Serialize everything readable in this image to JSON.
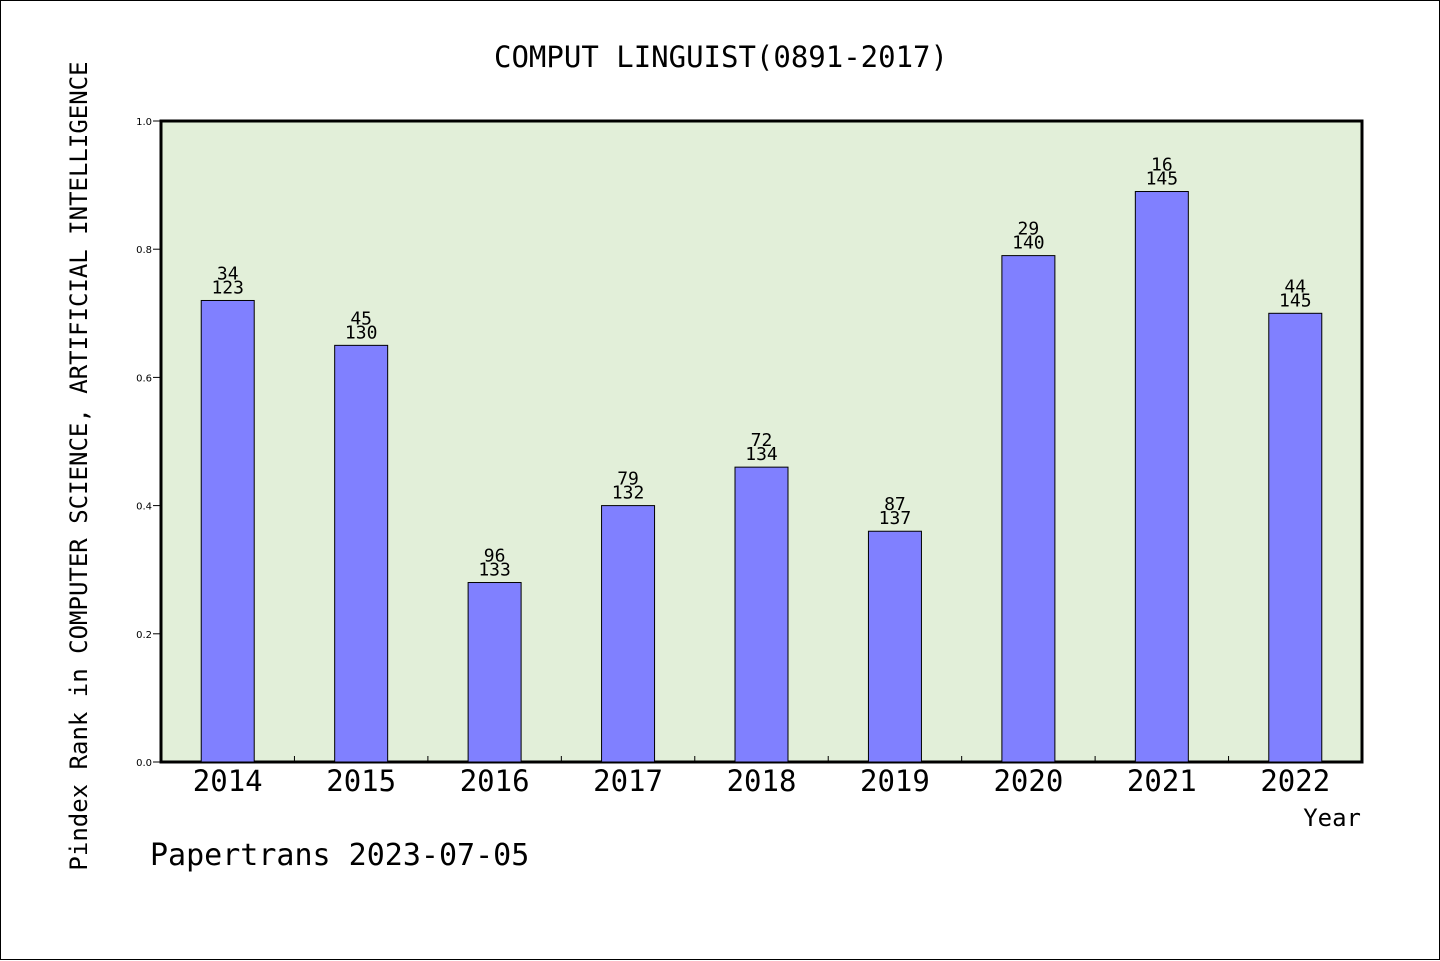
{
  "chart_data": {
    "type": "bar",
    "title": "COMPUT LINGUIST(0891-2017)",
    "xlabel": "Year",
    "ylabel": "Pindex Rank in COMPUTER SCIENCE, ARTIFICIAL INTELLIGENCE",
    "categories": [
      "2014",
      "2015",
      "2016",
      "2017",
      "2018",
      "2019",
      "2020",
      "2021",
      "2022"
    ],
    "values": [
      0.72,
      0.65,
      0.28,
      0.4,
      0.46,
      0.36,
      0.79,
      0.89,
      0.7
    ],
    "label_top": [
      "34",
      "45",
      "96",
      "79",
      "72",
      "87",
      "29",
      "16",
      "44"
    ],
    "label_bottom": [
      "123",
      "130",
      "133",
      "132",
      "134",
      "137",
      "140",
      "145",
      "145"
    ],
    "ylim": [
      0,
      1.0
    ],
    "yticks": [
      "0.0",
      "0.2",
      "0.4",
      "0.6",
      "0.8",
      "1.0"
    ],
    "grid": false,
    "colors": {
      "bar": "#8080ff",
      "plot_bg": "#e2efd9",
      "axis": "#000000"
    }
  },
  "footer": {
    "credit": "Papertrans 2023-07-05"
  }
}
